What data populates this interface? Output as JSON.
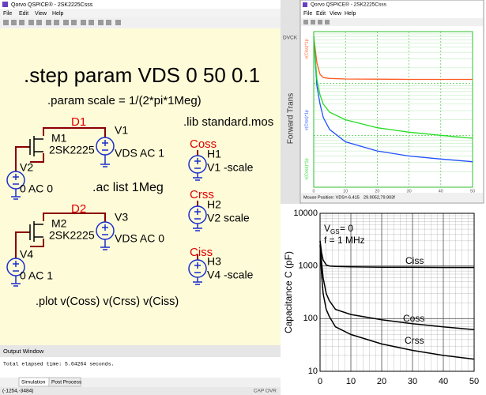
{
  "qspice_window": {
    "title": "Qorvo QSPICE® - 2SK2225Csss",
    "menu": [
      "File",
      "Edit",
      "View",
      "Help"
    ],
    "schematic": {
      "directives": [
        ".step param VDS 0 50  0.1",
        ".param  scale = 1/(2*pi*1Meg)",
        ".lib standard.mos",
        ".ac list 1Meg",
        ".plot v(Coss) v(Crss) v(Ciss)"
      ],
      "net_labels": [
        "D1",
        "Coss",
        "Crss",
        "D2",
        "Ciss"
      ],
      "labels": [
        "M1",
        "2SK2225",
        "V1",
        "VDS AC 1",
        "V2",
        "0 AC 0",
        "H1",
        "V1 -scale",
        "H2",
        "V2 scale",
        "M2",
        "2SK2225",
        "V3",
        "VDS AC 0",
        "V4",
        "0 AC 1",
        "H3",
        "V4 -scale"
      ]
    },
    "output_window": {
      "title": "Output Window",
      "text": "Total elapsed time: 5.64264 seconds."
    },
    "tabs": [
      "Simulation",
      "Post Process"
    ],
    "status": {
      "coords": "(-1254,-3484)",
      "mode": "CAP OVR"
    }
  },
  "background_window": {
    "texts": [
      "DVCK",
      "Forward Trans"
    ]
  },
  "waveform_window": {
    "title": "Qorvo QSPICE® - 2SK2225Csss",
    "menu": [
      "File",
      "Edit",
      "View",
      "Help"
    ],
    "status": [
      "Mouse Position: VDS=-6.415",
      "29.9052,79.903f"
    ]
  },
  "chart_data": [
    {
      "type": "line",
      "log_y": true,
      "grid": true,
      "grid_color": "#2fbf2f",
      "x": [
        0,
        1,
        2,
        3,
        5,
        10,
        20,
        30,
        40,
        50
      ],
      "series": [
        {
          "name": "v(Ciss)*1p",
          "color": "#ff5a1f",
          "values": [
            8000,
            2500,
            1500,
            1300,
            1250,
            1220,
            1210,
            1200,
            1200,
            1200
          ]
        },
        {
          "name": "v(Crss)*1p",
          "color": "#1f4fff",
          "values": [
            8000,
            900,
            400,
            220,
            130,
            75,
            50,
            40,
            35,
            31
          ]
        },
        {
          "name": "v(Coss)*1p",
          "color": "#22dd22",
          "values": [
            8000,
            1200,
            600,
            400,
            280,
            200,
            140,
            115,
            100,
            88
          ]
        }
      ],
      "xlim": [
        0,
        50
      ],
      "xticks": [
        0,
        10,
        20,
        30,
        40,
        50
      ],
      "ylim": [
        10,
        10000
      ],
      "yticks": [
        10,
        100,
        1000,
        10000
      ]
    },
    {
      "type": "line",
      "log_y": true,
      "grid": true,
      "grid_color": "#555555",
      "y_label": "Capacitance  C  (pF)",
      "annotations": {
        "vgs_main": "V",
        "vgs_sub": "GS",
        "vgs_rest": " = 0",
        "freq": "f = 1 MHz"
      },
      "x": [
        0,
        0.5,
        1,
        2,
        3,
        5,
        10,
        20,
        30,
        40,
        50
      ],
      "series": [
        {
          "name": "Ciss",
          "color": "#000000",
          "values": [
            3000,
            1800,
            1300,
            1050,
            1000,
            980,
            960,
            950,
            945,
            940,
            940
          ]
        },
        {
          "name": "Coss",
          "color": "#000000",
          "values": [
            3000,
            1200,
            600,
            300,
            220,
            150,
            120,
            95,
            80,
            70,
            62
          ]
        },
        {
          "name": "Crss",
          "color": "#000000",
          "values": [
            2500,
            700,
            300,
            150,
            110,
            70,
            50,
            33,
            25,
            20,
            17
          ]
        }
      ],
      "xlim": [
        0,
        50
      ],
      "xticks": [
        0,
        10,
        20,
        30,
        40,
        50
      ],
      "ylim": [
        10,
        10000
      ],
      "yticks": [
        10,
        100,
        1000,
        10000
      ]
    }
  ]
}
